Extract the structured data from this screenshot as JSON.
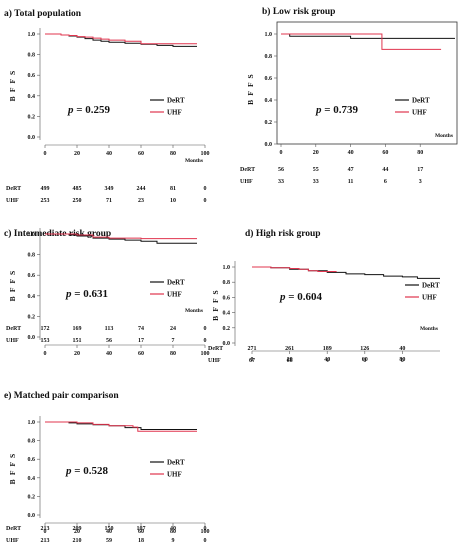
{
  "colors": {
    "DeRT": "#111111",
    "UHF": "#e0344e"
  },
  "chart_data": [
    {
      "type": "line",
      "title": "a) Total population",
      "ylabel": "B F F S",
      "xlabel": "Months",
      "p_value": "0.259",
      "ylim": [
        0,
        1.0
      ],
      "yticks": [
        0.0,
        0.2,
        0.4,
        0.6,
        0.8,
        1.0
      ],
      "ytick_labels": [
        "0.0",
        "0.2",
        "0.4",
        "0.6",
        "0.8",
        "1.0"
      ],
      "xlim": [
        0,
        100
      ],
      "xticks": [
        0,
        20,
        40,
        60,
        80,
        100
      ],
      "xtick_labels": [
        "0",
        "20",
        "40",
        "60",
        "80",
        "100"
      ],
      "legend": "right",
      "series": [
        {
          "name": "DeRT",
          "x": [
            0,
            10,
            15,
            20,
            25,
            30,
            35,
            40,
            50,
            60,
            70,
            80,
            95
          ],
          "y": [
            1.0,
            0.99,
            0.98,
            0.97,
            0.955,
            0.94,
            0.93,
            0.92,
            0.91,
            0.9,
            0.89,
            0.88,
            0.88
          ]
        },
        {
          "name": "UHF",
          "x": [
            0,
            10,
            15,
            20,
            25,
            30,
            35,
            40,
            50,
            60,
            95
          ],
          "y": [
            1.0,
            0.99,
            0.985,
            0.975,
            0.97,
            0.96,
            0.95,
            0.94,
            0.93,
            0.905,
            0.905
          ]
        }
      ],
      "risk_table": [
        {
          "label": "DeRT",
          "values": [
            "499",
            "485",
            "349",
            "244",
            "81",
            "0"
          ]
        },
        {
          "label": "UHF",
          "values": [
            "253",
            "250",
            "71",
            "23",
            "10",
            "0"
          ]
        }
      ]
    },
    {
      "type": "line",
      "title": "b) Low risk group",
      "ylabel": "B F F S",
      "xlabel": "Months",
      "p_value": "0.739",
      "ylim": [
        0,
        1.0
      ],
      "yticks": [
        0.0,
        0.2,
        0.4,
        0.6,
        0.8,
        1.0
      ],
      "ytick_labels": [
        "0.0",
        "0.2",
        "0.4",
        "0.6",
        "0.8",
        "1.0"
      ],
      "xlim": [
        0,
        100
      ],
      "xticks": [
        0,
        20,
        40,
        60,
        80
      ],
      "xtick_labels": [
        "0",
        "20",
        "40",
        "60",
        "80"
      ],
      "legend": "right",
      "series": [
        {
          "name": "DeRT",
          "x": [
            0,
            5,
            40,
            100
          ],
          "y": [
            1.0,
            0.98,
            0.96,
            0.96
          ]
        },
        {
          "name": "UHF",
          "x": [
            0,
            58,
            58,
            92
          ],
          "y": [
            1.0,
            1.0,
            0.86,
            0.86
          ]
        }
      ],
      "risk_table": [
        {
          "label": "DeRT",
          "values": [
            "56",
            "55",
            "47",
            "44",
            "17"
          ]
        },
        {
          "label": "UHF",
          "values": [
            "33",
            "33",
            "11",
            "6",
            "3"
          ]
        }
      ]
    },
    {
      "type": "line",
      "title": "c) Intermediate risk group",
      "ylabel": "B F F S",
      "xlabel": "Months",
      "p_value": "0.631",
      "ylim": [
        0,
        1.0
      ],
      "yticks": [
        0.0,
        0.2,
        0.4,
        0.6,
        0.8,
        1.0
      ],
      "ytick_labels": [
        "0.0",
        "0.2",
        "0.4",
        "0.6",
        "0.8",
        "1.0"
      ],
      "xlim": [
        0,
        100
      ],
      "xticks": [
        0,
        20,
        40,
        60,
        80,
        100
      ],
      "xtick_labels": [
        "0",
        "20",
        "40",
        "60",
        "80",
        "100"
      ],
      "legend": "right",
      "series": [
        {
          "name": "DeRT",
          "x": [
            0,
            15,
            20,
            30,
            40,
            50,
            60,
            70,
            95
          ],
          "y": [
            1.0,
            0.99,
            0.98,
            0.96,
            0.95,
            0.94,
            0.93,
            0.91,
            0.91
          ]
        },
        {
          "name": "UHF",
          "x": [
            0,
            20,
            30,
            40,
            60,
            95
          ],
          "y": [
            1.0,
            0.99,
            0.97,
            0.96,
            0.955,
            0.955
          ]
        }
      ],
      "risk_table": [
        {
          "label": "DeRT",
          "values": [
            "172",
            "169",
            "113",
            "74",
            "24",
            "0"
          ]
        },
        {
          "label": "UHF",
          "values": [
            "153",
            "151",
            "56",
            "17",
            "7",
            "0"
          ]
        }
      ]
    },
    {
      "type": "line",
      "title": "d) High risk group",
      "ylabel": "B F F S",
      "xlabel": "Months",
      "p_value": "0.604",
      "ylim": [
        0,
        1.0
      ],
      "yticks": [
        0.0,
        0.2,
        0.4,
        0.6,
        0.8,
        1.0
      ],
      "ytick_labels": [
        "0.0",
        "0.2",
        "0.4",
        "0.6",
        "0.8",
        "1.0"
      ],
      "xlim": [
        0,
        100
      ],
      "xticks": [
        0,
        20,
        40,
        60,
        80
      ],
      "xtick_labels": [
        "0",
        "20",
        "40",
        "60",
        "80"
      ],
      "legend": "right",
      "series": [
        {
          "name": "DeRT",
          "x": [
            0,
            10,
            20,
            30,
            40,
            50,
            60,
            70,
            80,
            88,
            100
          ],
          "y": [
            1.0,
            0.99,
            0.97,
            0.95,
            0.93,
            0.91,
            0.9,
            0.88,
            0.87,
            0.85,
            0.85
          ]
        },
        {
          "name": "UHF",
          "x": [
            0,
            10,
            20,
            25,
            30,
            35,
            45
          ],
          "y": [
            1.0,
            0.99,
            0.98,
            0.97,
            0.95,
            0.94,
            0.94
          ]
        }
      ],
      "risk_table": [
        {
          "label": "DeRT",
          "values": [
            "271",
            "261",
            "189",
            "126",
            "40"
          ]
        },
        {
          "label": "UHF",
          "values": [
            "67",
            "66",
            "4",
            "0",
            "0"
          ]
        }
      ]
    },
    {
      "type": "line",
      "title": "e) Matched pair comparison",
      "ylabel": "B F F S",
      "xlabel": "",
      "p_value": "0.528",
      "ylim": [
        0,
        1.0
      ],
      "yticks": [
        0.0,
        0.2,
        0.4,
        0.6,
        0.8,
        1.0
      ],
      "ytick_labels": [
        "0.0",
        "0.2",
        "0.4",
        "0.6",
        "0.8",
        "1.0"
      ],
      "xlim": [
        0,
        100
      ],
      "xticks": [
        0,
        20,
        40,
        60,
        80,
        100
      ],
      "xtick_labels": [
        "0",
        "20",
        "40",
        "60",
        "80",
        "100"
      ],
      "legend": "right",
      "series": [
        {
          "name": "DeRT",
          "x": [
            0,
            15,
            20,
            30,
            40,
            50,
            60,
            95
          ],
          "y": [
            1.0,
            0.99,
            0.98,
            0.97,
            0.96,
            0.94,
            0.92,
            0.92
          ]
        },
        {
          "name": "UHF",
          "x": [
            0,
            20,
            30,
            40,
            55,
            58,
            95
          ],
          "y": [
            1.0,
            0.99,
            0.975,
            0.96,
            0.945,
            0.9,
            0.9
          ]
        }
      ],
      "risk_table": [
        {
          "label": "DeRT",
          "values": [
            "213",
            "209",
            "150",
            "107",
            "40",
            "0"
          ]
        },
        {
          "label": "UHF",
          "values": [
            "213",
            "210",
            "59",
            "18",
            "9",
            "0"
          ]
        }
      ]
    }
  ]
}
